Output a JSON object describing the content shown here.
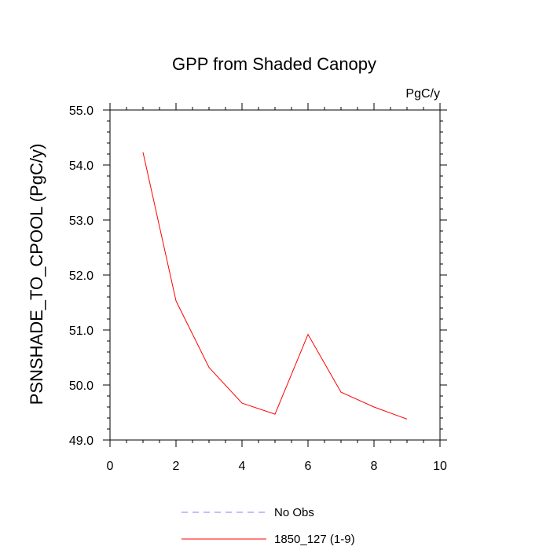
{
  "chart_data": {
    "type": "line",
    "title": "GPP from Shaded Canopy",
    "units_label": "PgC/y",
    "xlabel": "",
    "ylabel": "PSNSHADE_TO_CPOOL  (PgC/y)",
    "xlim": [
      0,
      10
    ],
    "ylim": [
      49.0,
      55.0
    ],
    "x_ticks": [
      0,
      2,
      4,
      6,
      8,
      10
    ],
    "y_ticks": [
      49.0,
      50.0,
      51.0,
      52.0,
      53.0,
      54.0,
      55.0
    ],
    "y_tick_labels": [
      "49.0",
      "50.0",
      "51.0",
      "52.0",
      "53.0",
      "54.0",
      "55.0"
    ],
    "grid": false,
    "legend_position": "bottom-center",
    "series": [
      {
        "name": "1850_127 (1-9)",
        "color": "#ff0000",
        "dash": "solid",
        "x": [
          1,
          2,
          3,
          4,
          5,
          6,
          7,
          8,
          9
        ],
        "values": [
          54.23,
          51.53,
          50.32,
          49.67,
          49.47,
          50.92,
          49.87,
          49.6,
          49.38
        ]
      }
    ],
    "legend": [
      {
        "label": "No Obs",
        "color": "#8080ff",
        "dash": "dashed"
      },
      {
        "label": "1850_127 (1-9)",
        "color": "#ff0000",
        "dash": "solid"
      }
    ]
  }
}
